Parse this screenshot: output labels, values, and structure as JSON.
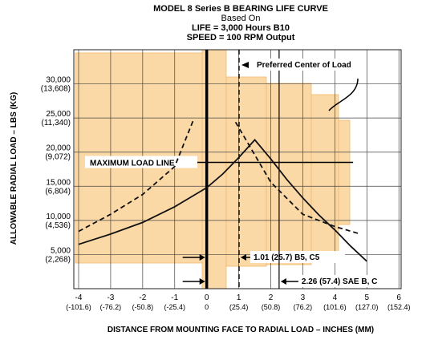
{
  "chart_data": {
    "type": "line",
    "title": "MODEL 8 Series B BEARING LIFE CURVE",
    "subtitle_lines": [
      "Based On",
      "LIFE = 3,000 Hours B10",
      "SPEED = 100 RPM Output"
    ],
    "x_label": "DISTANCE FROM MOUNTING FACE TO RADIAL LOAD – INCHES (MM)",
    "y_label": "ALLOWABLE RADIAL LOAD – LBS (KG)",
    "xlim": [
      -4.15,
      6.07
    ],
    "ylim": [
      0,
      35000
    ],
    "xticks": [
      -4,
      -3,
      -2,
      -1,
      0,
      1,
      2,
      3,
      4,
      5,
      6
    ],
    "xtick_mm_labels": [
      "(-101.6)",
      "(-76.2)",
      "(-50.8)",
      "(-25.4)",
      "0",
      "(25.4)",
      "(50.8)",
      "(76.2)",
      "(101.6)",
      "(127.0)",
      "(152.4)"
    ],
    "yticks": [
      {
        "value": 5000,
        "label": "5,000"
      },
      {
        "value": 10000,
        "label": "10,000"
      },
      {
        "value": 15000,
        "label": "15,000"
      },
      {
        "value": 20000,
        "label": "20,000"
      },
      {
        "value": 25000,
        "label": "25,000"
      },
      {
        "value": 30000,
        "label": "30,000"
      }
    ],
    "ytick_kg_labels": [
      "(2,268)",
      "(4,536)",
      "(6,804)",
      "(9,072)",
      "(11,340)",
      "(13,608)"
    ],
    "grid": true,
    "series": [
      {
        "style": "solid",
        "color": "#111111",
        "x": [
          -4,
          -3,
          -2,
          -1,
          0,
          0.5,
          1,
          1.5,
          2,
          2.5,
          3,
          3.5,
          4,
          4.5,
          5
        ],
        "values": [
          6500,
          8000,
          9700,
          12000,
          14800,
          16800,
          19200,
          21800,
          19000,
          16000,
          13300,
          10800,
          8600,
          6200,
          4000
        ]
      },
      {
        "style": "dashed",
        "color": "#111111",
        "x": [
          -4,
          -3,
          -2,
          -1,
          -0.4,
          0.25,
          0.9,
          2,
          3,
          4,
          4.8
        ],
        "values": [
          8400,
          10900,
          13800,
          17900,
          24900,
          null,
          24400,
          15600,
          10900,
          9100,
          8000
        ]
      }
    ],
    "max_load_line": {
      "label": "MAXIMUM LOAD LINE",
      "value": 18500,
      "x": [
        -1.8,
        4.57
      ]
    },
    "mounting_face": 0,
    "reference_lines": [
      {
        "value": 1.01,
        "label": "1.01 (25.7) B5, C5"
      },
      {
        "value": 2.26,
        "label": "2.26 (57.4) SAE B, C"
      }
    ],
    "preferred_center_label": "Preferred Center of Load"
  }
}
